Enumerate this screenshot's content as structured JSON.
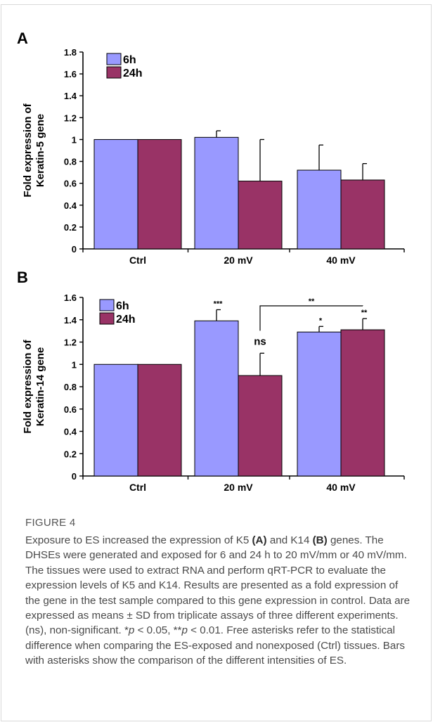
{
  "figure": {
    "label": "FIGURE 4",
    "caption_parts": [
      {
        "text": "Exposure to ES increased the expression of K5 "
      },
      {
        "text": "(A)",
        "bold": true
      },
      {
        "text": " and K14 "
      },
      {
        "text": "(B)",
        "bold": true
      },
      {
        "text": " genes. The DHSEs were generated and exposed for 6 and 24 h to 20 mV/mm or 40 mV/mm. The tissues were used to extract RNA and perform qRT-PCR to evaluate the expression levels of K5 and K14. Results are presented as a fold expression of the gene in the test sample compared to this gene expression in control. Data are expressed as means ± SD from triplicate assays of three different experiments. (ns), non-significant. *"
      },
      {
        "text": "p",
        "italic": true
      },
      {
        "text": " < 0.05, **"
      },
      {
        "text": "p",
        "italic": true
      },
      {
        "text": " < 0.01. Free asterisks refer to the statistical difference when comparing the ES-exposed and nonexposed (Ctrl) tissues. Bars with asterisks show the comparison of the different intensities of ES."
      }
    ]
  },
  "colors": {
    "series_6h": "#9999ff",
    "series_24h": "#993366"
  },
  "chart_data": [
    {
      "panel": "A",
      "type": "bar",
      "categories": [
        "Ctrl",
        "20 mV",
        "40 mV"
      ],
      "ylabel": "Fold expression of Keratin-5 gene",
      "ylabel_lines": [
        "Fold expression of",
        "Keratin-5 gene"
      ],
      "ylim": [
        0,
        1.8
      ],
      "yticks": [
        0,
        0.2,
        0.4,
        0.6,
        0.8,
        1,
        1.2,
        1.4,
        1.6,
        1.8
      ],
      "legend_position": "top-left",
      "grid": false,
      "series": [
        {
          "name": "6h",
          "values": [
            1.0,
            1.02,
            0.72
          ],
          "error": [
            0,
            0.06,
            0.23
          ],
          "annotations": [
            "",
            "",
            ""
          ]
        },
        {
          "name": "24h",
          "values": [
            1.0,
            0.62,
            0.63
          ],
          "error": [
            0,
            0.38,
            0.15
          ],
          "annotations": [
            "",
            "",
            ""
          ]
        }
      ],
      "brackets": []
    },
    {
      "panel": "B",
      "type": "bar",
      "categories": [
        "Ctrl",
        "20 mV",
        "40 mV"
      ],
      "ylabel": "Fold expression of Keratin-14 gene",
      "ylabel_lines": [
        "Fold expression of",
        "Keratin-14 gene"
      ],
      "ylim": [
        0,
        1.6
      ],
      "yticks": [
        0,
        0.2,
        0.4,
        0.6,
        0.8,
        1,
        1.2,
        1.4,
        1.6
      ],
      "legend_position": "top-left",
      "grid": false,
      "series": [
        {
          "name": "6h",
          "values": [
            1.0,
            1.39,
            1.29
          ],
          "error": [
            0,
            0.1,
            0.05
          ],
          "annotations": [
            "",
            "***",
            "*"
          ]
        },
        {
          "name": "24h",
          "values": [
            1.0,
            0.9,
            1.31
          ],
          "error": [
            0,
            0.2,
            0.1
          ],
          "annotations": [
            "",
            "ns",
            "**"
          ]
        }
      ],
      "brackets": [
        {
          "from": [
            1,
            1
          ],
          "to": [
            2,
            1
          ],
          "label": "**"
        }
      ]
    }
  ]
}
